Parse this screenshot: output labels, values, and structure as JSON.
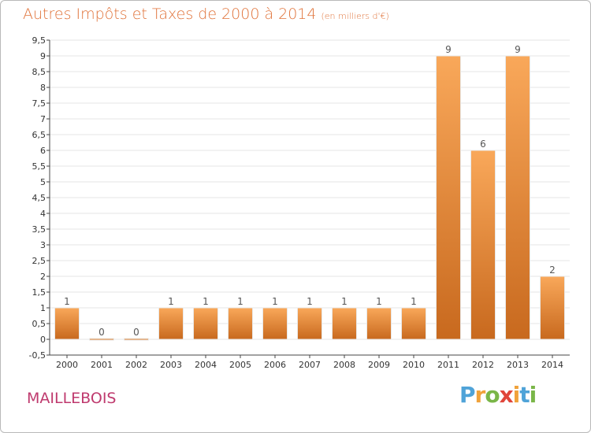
{
  "title": "Autres Impôts et Taxes de 2000 à 2014",
  "unit": "(en milliers d'€)",
  "commune": "MAILLEBOIS",
  "logo": {
    "letters": [
      "P",
      "r",
      "o",
      "x",
      "i",
      "t",
      "i"
    ],
    "colors": [
      "#4fa3d8",
      "#f0a23a",
      "#7ab648",
      "#e0453a",
      "#f0a23a",
      "#4fa3d8",
      "#7ab648"
    ]
  },
  "colors": {
    "bar_light": "#f9a85a",
    "bar_dark": "#c8691e",
    "axis": "#444444",
    "grid": "#e6e6e6"
  },
  "chart_data": {
    "type": "bar",
    "categories": [
      "2000",
      "2001",
      "2002",
      "2003",
      "2004",
      "2005",
      "2006",
      "2007",
      "2008",
      "2009",
      "2010",
      "2011",
      "2012",
      "2013",
      "2014"
    ],
    "values": [
      1,
      0,
      0,
      1,
      1,
      1,
      1,
      1,
      1,
      1,
      1,
      9,
      6,
      9,
      2
    ],
    "labels": [
      "1",
      "0",
      "0",
      "1",
      "1",
      "1",
      "1",
      "1",
      "1",
      "1",
      "1",
      "9",
      "6",
      "9",
      "2"
    ],
    "yticks": [
      "-0,5",
      "0",
      "0,5",
      "1",
      "1,5",
      "2",
      "2,5",
      "3",
      "3,5",
      "4",
      "4,5",
      "5",
      "5,5",
      "6",
      "6,5",
      "7",
      "7,5",
      "8",
      "8,5",
      "9",
      "9,5"
    ],
    "ylim": [
      -0.5,
      9.5
    ],
    "grid": true
  }
}
